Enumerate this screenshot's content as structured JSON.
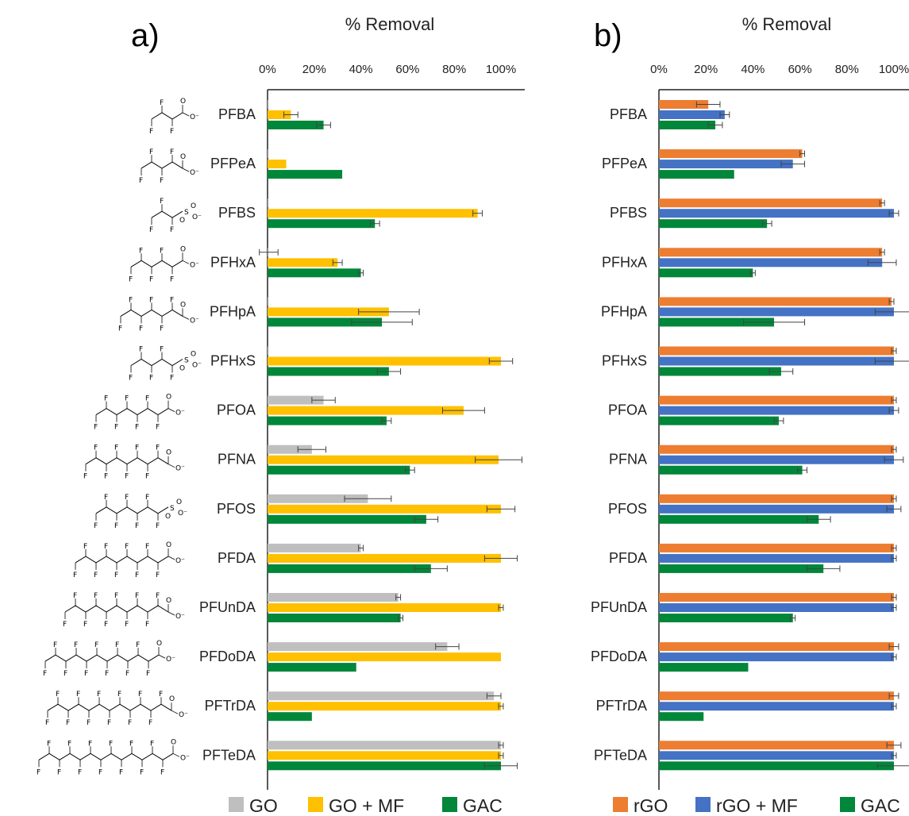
{
  "chart_data": [
    {
      "type": "bar",
      "orientation": "horizontal",
      "panel_label": "a)",
      "title": "% Removal",
      "xlim": [
        0,
        100
      ],
      "x_ticks": [
        "0%",
        "20%",
        "40%",
        "60%",
        "80%",
        "100%"
      ],
      "categories": [
        "PFBA",
        "PFPeA",
        "PFBS",
        "PFHxA",
        "PFHpA",
        "PFHxS",
        "PFOA",
        "PFNA",
        "PFOS",
        "PFDA",
        "PFUnDA",
        "PFDoDA",
        "PFTrDA",
        "PFTeDA"
      ],
      "series": [
        {
          "name": "GO",
          "color": "#bfbfbf",
          "values": [
            0.5,
            0.5,
            0.5,
            0.5,
            0.5,
            0.5,
            24,
            19,
            43,
            40,
            56,
            77,
            97,
            100
          ],
          "errors": [
            0,
            0,
            0,
            4,
            0,
            0,
            5,
            6,
            10,
            1,
            1,
            5,
            3,
            1
          ]
        },
        {
          "name": "GO  + MF",
          "color": "#ffc000",
          "values": [
            10,
            8,
            90,
            30,
            52,
            100,
            84,
            99,
            100,
            100,
            100,
            100,
            100,
            100
          ],
          "errors": [
            3,
            0,
            2,
            2,
            13,
            5,
            9,
            10,
            6,
            7,
            1,
            0,
            1,
            1
          ]
        },
        {
          "name": "GAC",
          "color": "#00873a",
          "values": [
            24,
            32,
            46,
            40,
            49,
            52,
            51,
            61,
            68,
            70,
            57,
            38,
            19,
            100
          ],
          "errors": [
            3,
            0,
            2,
            1,
            13,
            5,
            2,
            2,
            5,
            7,
            1,
            0,
            0,
            7
          ]
        }
      ],
      "legend": "bottom"
    },
    {
      "type": "bar",
      "orientation": "horizontal",
      "panel_label": "b)",
      "title": "% Removal",
      "xlim": [
        0,
        100
      ],
      "x_ticks": [
        "0%",
        "20%",
        "40%",
        "60%",
        "80%",
        "100%"
      ],
      "categories": [
        "PFBA",
        "PFPeA",
        "PFBS",
        "PFHxA",
        "PFHpA",
        "PFHxS",
        "PFOA",
        "PFNA",
        "PFOS",
        "PFDA",
        "PFUnDA",
        "PFDoDA",
        "PFTrDA",
        "PFTeDA"
      ],
      "series": [
        {
          "name": "rGO",
          "color": "#ed7d31",
          "values": [
            21,
            61,
            95,
            95,
            99,
            100,
            100,
            100,
            100,
            100,
            100,
            100,
            100,
            100
          ],
          "errors": [
            5,
            1,
            1,
            1,
            1,
            1,
            1,
            1,
            1,
            1,
            1,
            2,
            2,
            3
          ]
        },
        {
          "name": "rGO + MF",
          "color": "#4472c4",
          "values": [
            28,
            57,
            100,
            95,
            100,
            100,
            100,
            100,
            100,
            100,
            100,
            100,
            100,
            100
          ],
          "errors": [
            2,
            5,
            2,
            6,
            8,
            8,
            2,
            4,
            3,
            1,
            1,
            1,
            1,
            1
          ]
        },
        {
          "name": "GAC",
          "color": "#00873a",
          "values": [
            24,
            32,
            46,
            40,
            49,
            52,
            51,
            61,
            68,
            70,
            57,
            38,
            19,
            100
          ],
          "errors": [
            3,
            0,
            2,
            1,
            13,
            5,
            2,
            2,
            5,
            7,
            1,
            0,
            0,
            7
          ]
        }
      ],
      "legend": "bottom"
    }
  ]
}
